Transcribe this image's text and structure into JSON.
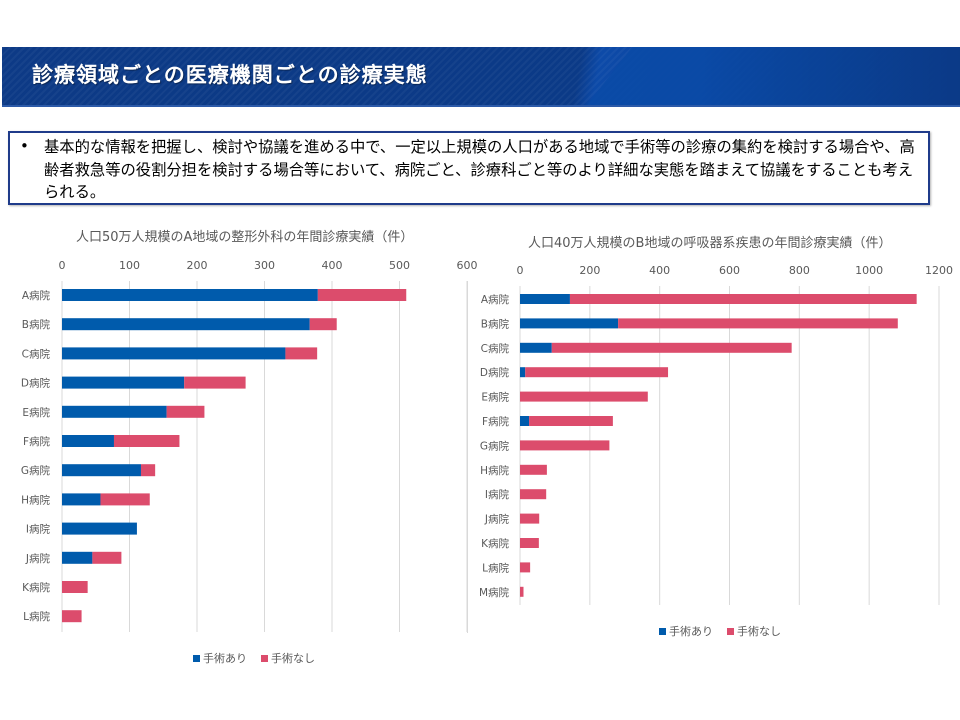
{
  "header": {
    "title": "診療領域ごとの医療機関ごとの診療実態"
  },
  "info_box": {
    "bullet": "•",
    "text": "基本的な情報を把握し、検討や協議を進める中で、一定以上規模の人口がある地域で手術等の診療の集約を検討する場合や、高齢者救急等の役割分担を検討する場合等において、病院ごと、診療科ごと等のより詳細な実態を踏まえて協議をすることも考えられる。"
  },
  "colors": {
    "surgery": "#005bac",
    "no_surgery": "#dc4c6c",
    "grid": "#d9d9d9",
    "axis_text": "#595959"
  },
  "chart_data": [
    {
      "type": "bar",
      "orientation": "horizontal",
      "stacked": true,
      "title": "人口50万人規模のA地域の整形外科の年間診療実績（件）",
      "xlabel": "",
      "ylabel": "",
      "xlim": [
        0,
        600
      ],
      "xticks": [
        0,
        100,
        200,
        300,
        400,
        500,
        600
      ],
      "grid": true,
      "legend_position": "bottom",
      "categories": [
        "A病院",
        "B病院",
        "C病院",
        "D病院",
        "E病院",
        "F病院",
        "G病院",
        "H病院",
        "I病院",
        "J病院",
        "K病院",
        "L病院"
      ],
      "series": [
        {
          "name": "手術あり",
          "color": "#005bac",
          "values": [
            379,
            367,
            331,
            181,
            155,
            77,
            117,
            57,
            111,
            45,
            0,
            0
          ]
        },
        {
          "name": "手術なし",
          "color": "#dc4c6c",
          "values": [
            131,
            40,
            47,
            91,
            56,
            97,
            21,
            73,
            0,
            43,
            38,
            29
          ]
        }
      ]
    },
    {
      "type": "bar",
      "orientation": "horizontal",
      "stacked": true,
      "title": "人口40万人規模のB地域の呼吸器系疾患の年間診療実績（件）",
      "xlabel": "",
      "ylabel": "",
      "xlim": [
        0,
        1200
      ],
      "xticks": [
        0,
        200,
        400,
        600,
        800,
        1000,
        1200
      ],
      "grid": true,
      "legend_position": "bottom",
      "categories": [
        "A病院",
        "B病院",
        "C病院",
        "D病院",
        "E病院",
        "F病院",
        "G病院",
        "H病院",
        "I病院",
        "J病院",
        "K病院",
        "L病院",
        "M病院"
      ],
      "series": [
        {
          "name": "手術あり",
          "color": "#005bac",
          "values": [
            143,
            281,
            91,
            15,
            0,
            26,
            0,
            0,
            0,
            0,
            0,
            0,
            0
          ]
        },
        {
          "name": "手術なし",
          "color": "#dc4c6c",
          "values": [
            993,
            801,
            687,
            409,
            366,
            240,
            256,
            77,
            75,
            55,
            54,
            29,
            10
          ]
        }
      ]
    }
  ]
}
